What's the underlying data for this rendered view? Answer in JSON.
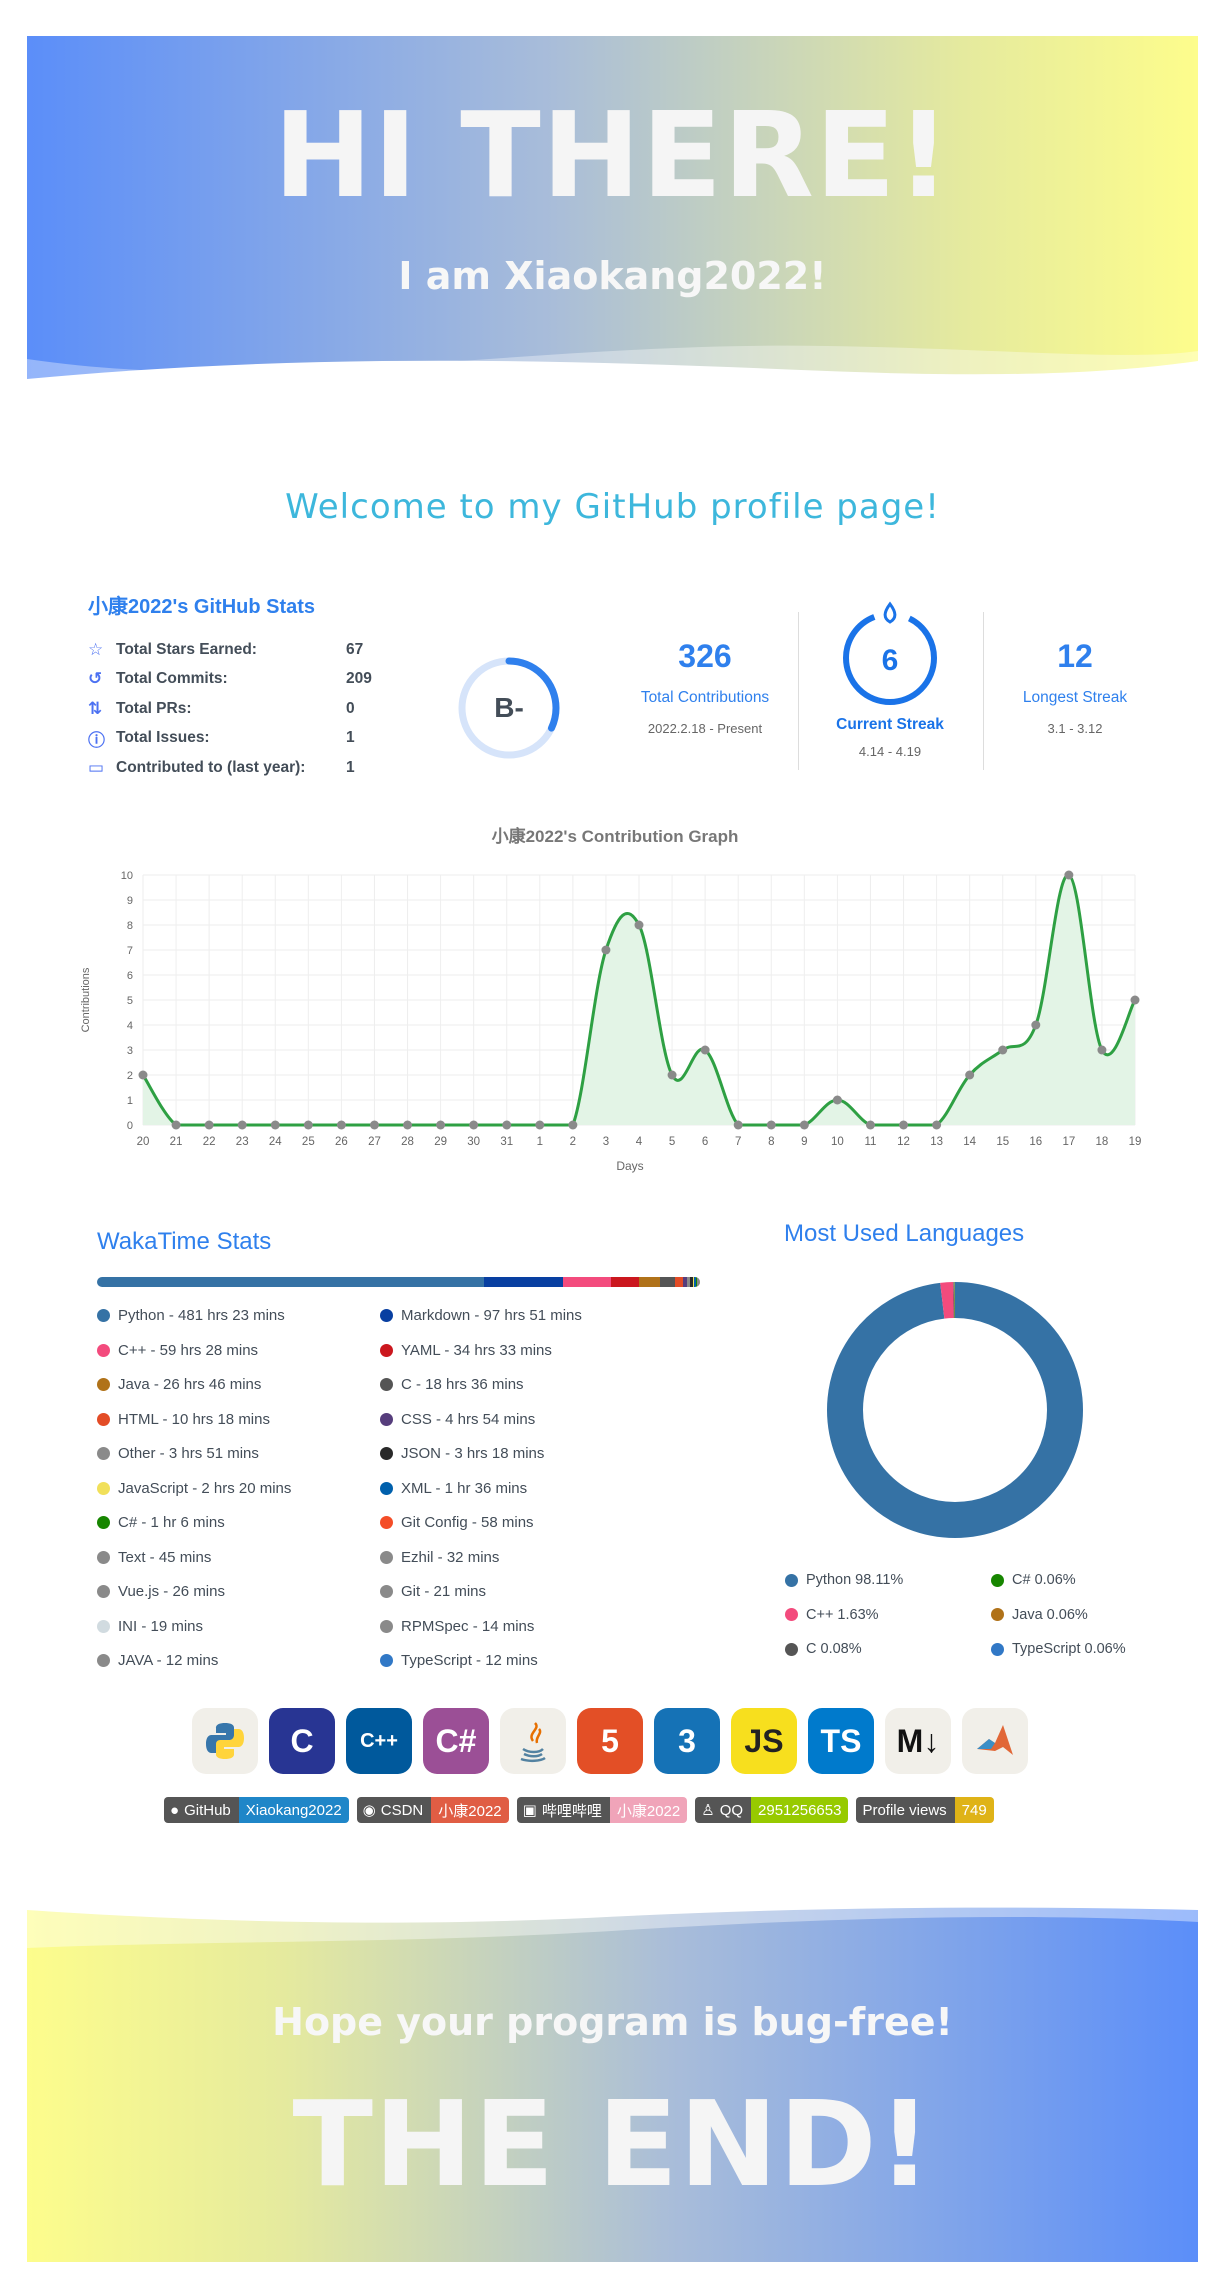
{
  "header": {
    "title": "HI THERE!",
    "subtitle": "I am Xiaokang2022!"
  },
  "welcome": "Welcome to my GitHub profile page!",
  "github_stats": {
    "title": "小康2022's GitHub Stats",
    "rows": [
      {
        "icon": "star-icon",
        "label": "Total Stars Earned:",
        "value": "67"
      },
      {
        "icon": "history-icon",
        "label": "Total Commits:",
        "value": "209"
      },
      {
        "icon": "pull-request-icon",
        "label": "Total PRs:",
        "value": "0"
      },
      {
        "icon": "issue-icon",
        "label": "Total Issues:",
        "value": "1"
      },
      {
        "icon": "repo-icon",
        "label": "Contributed to (last year):",
        "value": "1"
      }
    ],
    "grade": "B-",
    "grade_progress": 0.32
  },
  "streak": {
    "total": {
      "value": "326",
      "label": "Total Contributions",
      "range": "2022.2.18 - Present"
    },
    "current": {
      "value": "6",
      "label": "Current Streak",
      "range": "4.14 - 4.19"
    },
    "longest": {
      "value": "12",
      "label": "Longest Streak",
      "range": "3.1 - 3.12"
    }
  },
  "chart_data": {
    "type": "line",
    "title": "小康2022's Contribution Graph",
    "xlabel": "Days",
    "ylabel": "Contributions",
    "categories": [
      "20",
      "21",
      "22",
      "23",
      "24",
      "25",
      "26",
      "27",
      "28",
      "29",
      "30",
      "31",
      "1",
      "2",
      "3",
      "4",
      "5",
      "6",
      "7",
      "8",
      "9",
      "10",
      "11",
      "12",
      "13",
      "14",
      "15",
      "16",
      "17",
      "18",
      "19"
    ],
    "values": [
      2,
      0,
      0,
      0,
      0,
      0,
      0,
      0,
      0,
      0,
      0,
      0,
      0,
      0,
      7,
      8,
      2,
      3,
      0,
      0,
      0,
      1,
      0,
      0,
      0,
      2,
      3,
      4,
      10,
      3,
      5
    ],
    "ylim": [
      0,
      10
    ],
    "yticks": [
      "0",
      "1",
      "2",
      "3",
      "4",
      "5",
      "6",
      "7",
      "8",
      "9",
      "10"
    ],
    "grid": true,
    "line_color": "#2ea043",
    "fill_color": "#e3f4e6",
    "point_color": "#8a8a8a"
  },
  "wakatime": {
    "title": "WakaTime Stats",
    "items": [
      {
        "label": "Python - 481 hrs 23 mins",
        "color": "#3572A5",
        "percent": 61.8
      },
      {
        "label": "Markdown - 97 hrs 51 mins",
        "color": "#083fa1",
        "percent": 12.6
      },
      {
        "label": "C++ - 59 hrs 28 mins",
        "color": "#f34b7d",
        "percent": 7.6
      },
      {
        "label": "YAML - 34 hrs 33 mins",
        "color": "#cb171e",
        "percent": 4.4
      },
      {
        "label": "Java - 26 hrs 46 mins",
        "color": "#b07219",
        "percent": 3.4
      },
      {
        "label": "C - 18 hrs 36 mins",
        "color": "#555555",
        "percent": 2.4
      },
      {
        "label": "HTML - 10 hrs 18 mins",
        "color": "#e34c26",
        "percent": 1.3
      },
      {
        "label": "CSS - 4 hrs 54 mins",
        "color": "#563d7c",
        "percent": 0.6
      },
      {
        "label": "Other - 3 hrs 51 mins",
        "color": "#8a8a8a",
        "percent": 0.5
      },
      {
        "label": "JSON - 3 hrs 18 mins",
        "color": "#292929",
        "percent": 0.4
      },
      {
        "label": "JavaScript - 2 hrs 20 mins",
        "color": "#f1e05a",
        "percent": 0.3
      },
      {
        "label": "XML - 1 hr 36 mins",
        "color": "#0060ac",
        "percent": 0.2
      },
      {
        "label": "C# - 1 hr 6 mins",
        "color": "#178600",
        "percent": 0.15
      },
      {
        "label": "Git Config - 58 mins",
        "color": "#f44d27",
        "percent": 0.12
      },
      {
        "label": "Text - 45 mins",
        "color": "#8a8a8a",
        "percent": 0.1
      },
      {
        "label": "Ezhil - 32 mins",
        "color": "#8a8a8a",
        "percent": 0.07
      },
      {
        "label": "Vue.js - 26 mins",
        "color": "#8a8a8a",
        "percent": 0.06
      },
      {
        "label": "Git - 21 mins",
        "color": "#8a8a8a",
        "percent": 0.05
      },
      {
        "label": "INI - 19 mins",
        "color": "#d1dbe0",
        "percent": 0.04
      },
      {
        "label": "RPMSpec - 14 mins",
        "color": "#8a8a8a",
        "percent": 0.03
      },
      {
        "label": "JAVA - 12 mins",
        "color": "#8a8a8a",
        "percent": 0.03
      },
      {
        "label": "TypeScript - 12 mins",
        "color": "#3178c6",
        "percent": 0.03
      }
    ]
  },
  "languages": {
    "title": "Most Used Languages",
    "items": [
      {
        "label": "Python 98.11%",
        "color": "#3572A5",
        "percent": 98.11
      },
      {
        "label": "C# 0.06%",
        "color": "#178600",
        "percent": 0.06
      },
      {
        "label": "C++ 1.63%",
        "color": "#f34b7d",
        "percent": 1.63
      },
      {
        "label": "Java 0.06%",
        "color": "#b07219",
        "percent": 0.06
      },
      {
        "label": "C 0.08%",
        "color": "#555555",
        "percent": 0.08
      },
      {
        "label": "TypeScript 0.06%",
        "color": "#3178c6",
        "percent": 0.06
      }
    ]
  },
  "tech_icons": [
    {
      "name": "python-icon",
      "text": "",
      "bg": "#f1efe9",
      "fg": "#3776ab"
    },
    {
      "name": "c-icon",
      "text": "C",
      "bg": "#283593",
      "fg": "#ffffff"
    },
    {
      "name": "cpp-icon",
      "text": "C++",
      "bg": "#00599c",
      "fg": "#ffffff"
    },
    {
      "name": "csharp-icon",
      "text": "C#",
      "bg": "#9b4f96",
      "fg": "#ffffff"
    },
    {
      "name": "java-icon",
      "text": "",
      "bg": "#f1efe9",
      "fg": "#e76f00"
    },
    {
      "name": "html5-icon",
      "text": "5",
      "bg": "#e34f26",
      "fg": "#ffffff"
    },
    {
      "name": "css3-icon",
      "text": "3",
      "bg": "#1572b6",
      "fg": "#ffffff"
    },
    {
      "name": "javascript-icon",
      "text": "JS",
      "bg": "#f7df1e",
      "fg": "#222222"
    },
    {
      "name": "typescript-icon",
      "text": "TS",
      "bg": "#007acc",
      "fg": "#ffffff"
    },
    {
      "name": "markdown-icon",
      "text": "M↓",
      "bg": "#f1efe9",
      "fg": "#111111"
    },
    {
      "name": "matlab-icon",
      "text": "",
      "bg": "#f1efe9",
      "fg": "#e16737"
    }
  ],
  "badges": [
    {
      "name": "github-badge",
      "icon": "github-icon",
      "left": "GitHub",
      "right": "Xiaokang2022",
      "color": "#1f86c8"
    },
    {
      "name": "csdn-badge",
      "icon": "csdn-icon",
      "left": "CSDN",
      "right": "小康2022",
      "color": "#e05d44"
    },
    {
      "name": "bilibili-badge",
      "icon": "bilibili-icon",
      "left": "哔哩哔哩",
      "right": "小康2022",
      "color": "#f0a4b9"
    },
    {
      "name": "qq-badge",
      "icon": "qq-icon",
      "left": "QQ",
      "right": "2951256653",
      "color": "#97ca00"
    },
    {
      "name": "profile-views-badge",
      "icon": "",
      "left": "Profile views",
      "right": "749",
      "color": "#dfb317"
    }
  ],
  "footer": {
    "subtitle": "Hope your program is bug-free!",
    "title": "THE END!"
  }
}
